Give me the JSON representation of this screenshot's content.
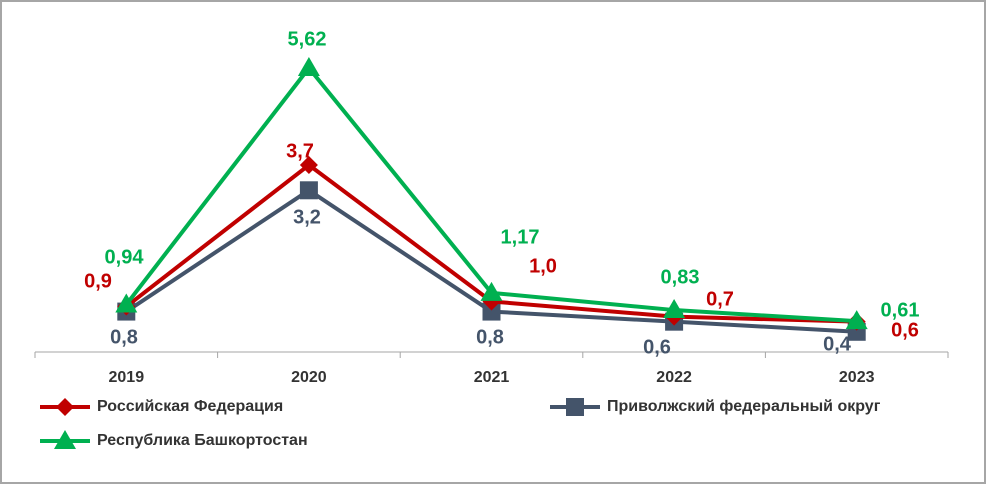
{
  "chart_data": {
    "type": "line",
    "categories": [
      "2019",
      "2020",
      "2021",
      "2022",
      "2023"
    ],
    "series": [
      {
        "name": "Российская Федерация",
        "color": "#c00000",
        "marker": "diamond",
        "values": [
          0.9,
          3.7,
          1.0,
          0.7,
          0.6
        ],
        "value_labels": [
          "0,9",
          "3,7",
          "1,0",
          "0,7",
          "0,6"
        ]
      },
      {
        "name": "Приволжский федеральный округ",
        "color": "#44546a",
        "marker": "square",
        "values": [
          0.8,
          3.2,
          0.8,
          0.6,
          0.4
        ],
        "value_labels": [
          "0,8",
          "3,2",
          "0,8",
          "0,6",
          "0,4"
        ]
      },
      {
        "name": "Республика Башкортостан",
        "color": "#00b050",
        "marker": "triangle",
        "values": [
          0.94,
          5.62,
          1.17,
          0.83,
          0.61
        ],
        "value_labels": [
          "0,94",
          "5,62",
          "1,17",
          "0,83",
          "0,61"
        ]
      }
    ]
  }
}
